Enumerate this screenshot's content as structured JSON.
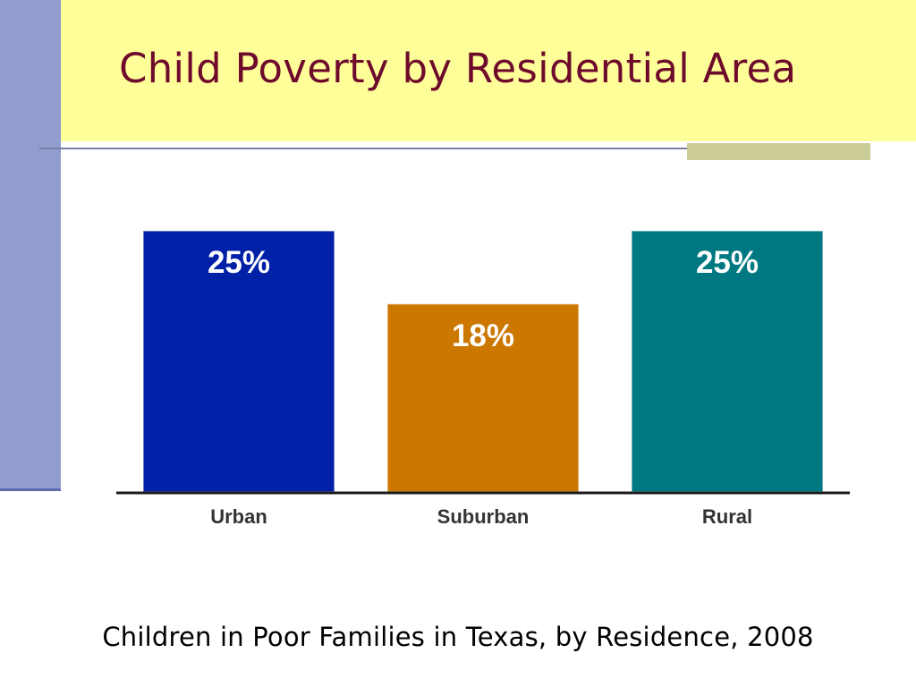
{
  "slide": {
    "title": "Child Poverty by Residential Area",
    "caption": "Children in Poor Families in Texas, by Residence, 2008"
  },
  "colors": {
    "title": "#6e0b2c",
    "title_band": "#ffff99",
    "left_bar": "#919ccf",
    "accent": "#cccc99"
  },
  "chart_data": {
    "type": "bar",
    "categories": [
      "Urban",
      "Suburban",
      "Rural"
    ],
    "values": [
      25,
      18,
      25
    ],
    "data_labels": [
      "25%",
      "18%",
      "25%"
    ],
    "bar_colors": [
      "#0020a8",
      "#cc7700",
      "#007882"
    ],
    "ylim": [
      0,
      25
    ],
    "grid": false
  }
}
